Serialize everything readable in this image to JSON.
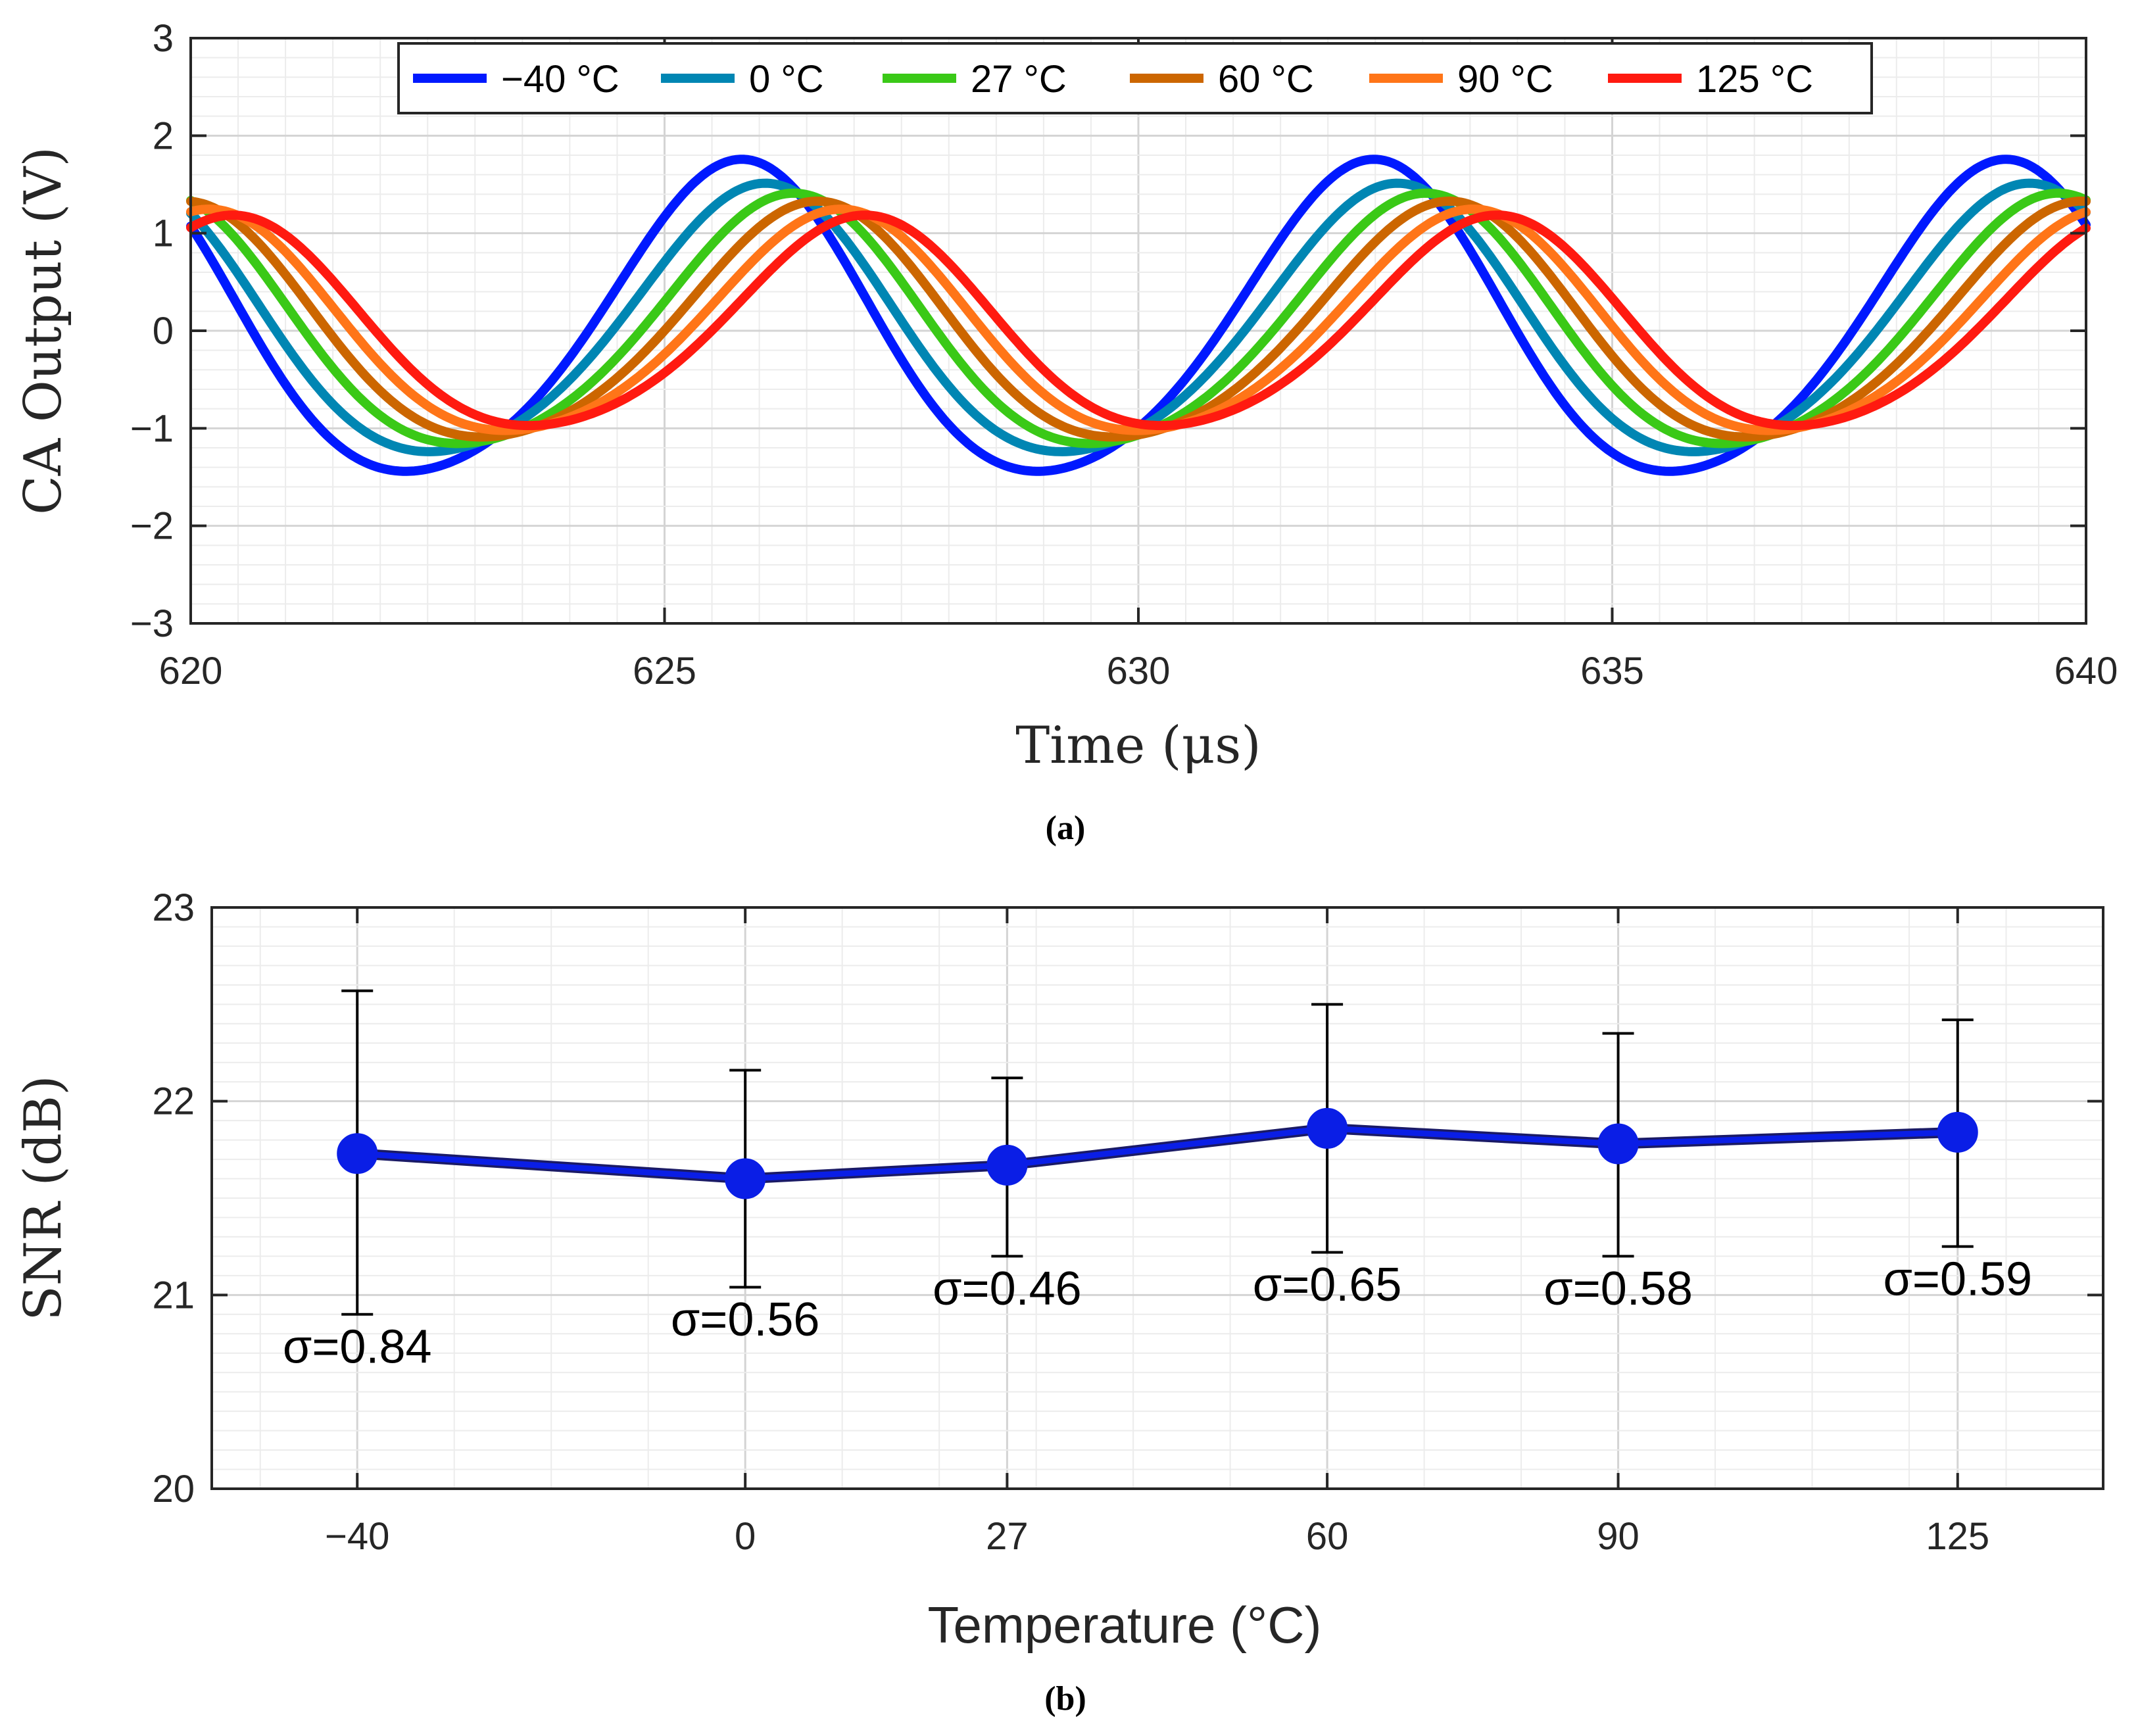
{
  "chart_data": [
    {
      "type": "line",
      "panel_caption": "(a)",
      "title": "",
      "xlabel": "Time (μs)",
      "ylabel": "CA Output (V)",
      "xlim": [
        620,
        640
      ],
      "ylim": [
        -3,
        3
      ],
      "xticks": [
        620,
        625,
        630,
        635,
        640
      ],
      "yticks": [
        -3,
        -2,
        -1,
        0,
        1,
        2,
        3
      ],
      "xtick_labels": [
        "620",
        "625",
        "630",
        "635",
        "640"
      ],
      "ytick_labels": [
        "−3",
        "−2",
        "−1",
        "0",
        "1",
        "2",
        "3"
      ],
      "grid": true,
      "minor_grid": true,
      "legend_position": "top",
      "period_us": 6.67,
      "series": [
        {
          "name": "−40 °C",
          "color": "#0019ff",
          "amplitude": 1.72,
          "peak_time_us": 625.75,
          "min_value": -1.7,
          "max_value": 1.76
        },
        {
          "name": "0 °C",
          "color": "#0086b3",
          "amplitude": 1.48,
          "peak_time_us": 626.0,
          "min_value": -1.52,
          "max_value": 1.45
        },
        {
          "name": "27 °C",
          "color": "#3ac917",
          "amplitude": 1.38,
          "peak_time_us": 626.3,
          "min_value": -1.42,
          "max_value": 1.32
        },
        {
          "name": "60 °C",
          "color": "#cc6600",
          "amplitude": 1.3,
          "peak_time_us": 626.55,
          "min_value": -1.33,
          "max_value": 1.25
        },
        {
          "name": "90 °C",
          "color": "#ff7518",
          "amplitude": 1.22,
          "peak_time_us": 626.8,
          "min_value": -1.26,
          "max_value": 1.18
        },
        {
          "name": "125 °C",
          "color": "#ff1a10",
          "amplitude": 1.16,
          "peak_time_us": 627.05,
          "min_value": -1.2,
          "max_value": 1.12
        }
      ]
    },
    {
      "type": "line",
      "panel_caption": "(b)",
      "title": "",
      "xlabel": "Temperature (°C)",
      "ylabel": "SNR (dB)",
      "ylim": [
        20,
        23
      ],
      "yticks": [
        20,
        21,
        22,
        23
      ],
      "ytick_labels": [
        "20",
        "21",
        "22",
        "23"
      ],
      "categories": [
        "−40",
        "0",
        "27",
        "60",
        "90",
        "125"
      ],
      "x_positions_celsius": [
        -40,
        0,
        27,
        60,
        90,
        125
      ],
      "xlim": [
        -55,
        140
      ],
      "grid": true,
      "minor_grid": true,
      "series": [
        {
          "name": "SNR",
          "color": "#0a1ee6",
          "values": [
            21.73,
            21.6,
            21.67,
            21.86,
            21.78,
            21.84
          ],
          "error_low": [
            20.9,
            21.04,
            21.2,
            21.22,
            21.2,
            21.25
          ],
          "error_high": [
            22.57,
            22.16,
            22.12,
            22.5,
            22.35,
            22.42
          ],
          "annotations": [
            "σ=0.84",
            "σ=0.56",
            "σ=0.46",
            "σ=0.65",
            "σ=0.58",
            "σ=0.59"
          ]
        }
      ]
    }
  ]
}
